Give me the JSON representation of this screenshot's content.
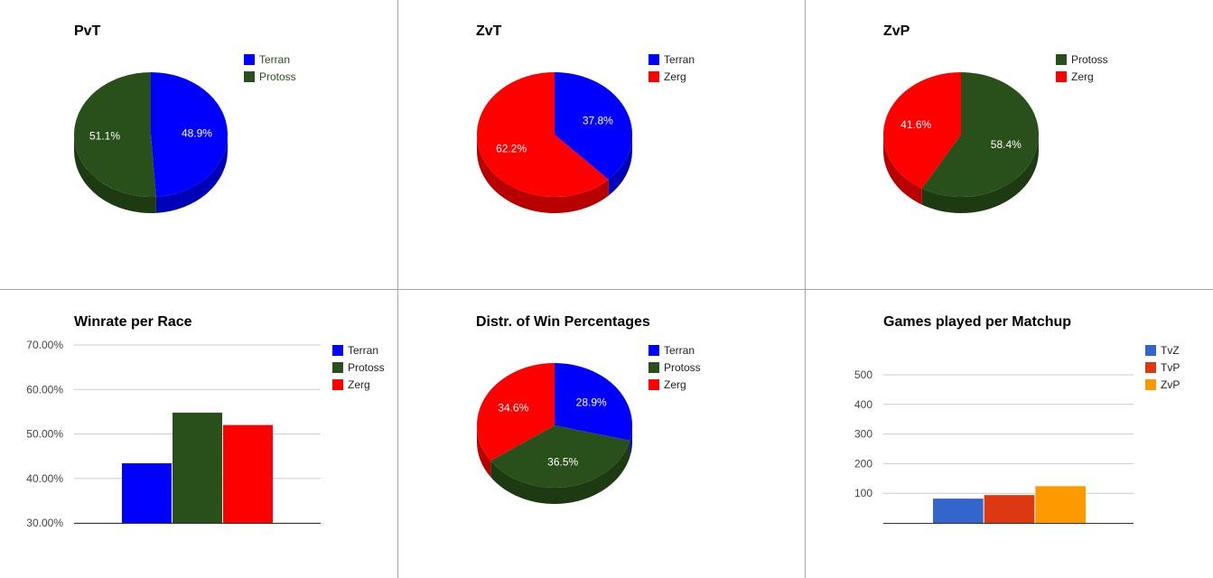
{
  "colors": {
    "terran": "#0000ff",
    "protoss": "#29501a",
    "zerg": "#ff0000",
    "tvz": "#3366cc",
    "tvp": "#dc3912",
    "zvp": "#ff9900"
  },
  "chart_data": [
    {
      "type": "pie",
      "title": "PvT",
      "legend_position": "top-right",
      "legend_green_text": true,
      "start_angle": 0,
      "slices": [
        {
          "name": "Terran",
          "value": 48.9,
          "label": "48.9%",
          "color": "#0000ff"
        },
        {
          "name": "Protoss",
          "value": 51.1,
          "label": "51.1%",
          "color": "#29501a"
        }
      ]
    },
    {
      "type": "pie",
      "title": "ZvT",
      "legend_position": "top-right",
      "start_angle": 0,
      "slices": [
        {
          "name": "Terran",
          "value": 37.8,
          "label": "37.8%",
          "color": "#0000ff"
        },
        {
          "name": "Zerg",
          "value": 62.2,
          "label": "62.2%",
          "color": "#ff0000"
        }
      ]
    },
    {
      "type": "pie",
      "title": "ZvP",
      "legend_position": "top-right",
      "start_angle": 0,
      "slices": [
        {
          "name": "Protoss",
          "value": 58.4,
          "label": "58.4%",
          "color": "#29501a"
        },
        {
          "name": "Zerg",
          "value": 41.6,
          "label": "41.6%",
          "color": "#ff0000"
        }
      ]
    },
    {
      "type": "bar",
      "title": "Winrate per Race",
      "legend_position": "top-right",
      "ylim": [
        30,
        70
      ],
      "yticks": [
        "70.00%",
        "60.00%",
        "50.00%",
        "40.00%",
        "30.00%"
      ],
      "series": [
        {
          "name": "Terran",
          "value": 43.4,
          "color": "#0000ff"
        },
        {
          "name": "Protoss",
          "value": 54.8,
          "color": "#29501a"
        },
        {
          "name": "Zerg",
          "value": 52.0,
          "color": "#ff0000"
        }
      ]
    },
    {
      "type": "pie",
      "title": "Distr. of Win Percentages",
      "legend_position": "top-right",
      "start_angle": 0,
      "slices": [
        {
          "name": "Terran",
          "value": 28.9,
          "label": "28.9%",
          "color": "#0000ff"
        },
        {
          "name": "Protoss",
          "value": 36.5,
          "label": "36.5%",
          "color": "#29501a"
        },
        {
          "name": "Zerg",
          "value": 34.6,
          "label": "34.6%",
          "color": "#ff0000"
        }
      ]
    },
    {
      "type": "bar",
      "title": "Games played per Matchup",
      "legend_position": "top-right",
      "ylim": [
        0,
        500
      ],
      "yticks": [
        "500",
        "400",
        "300",
        "200",
        "100"
      ],
      "series": [
        {
          "name": "TvZ",
          "value": 82,
          "color": "#3366cc"
        },
        {
          "name": "TvP",
          "value": 94,
          "color": "#dc3912"
        },
        {
          "name": "ZvP",
          "value": 124,
          "color": "#ff9900"
        }
      ]
    }
  ]
}
